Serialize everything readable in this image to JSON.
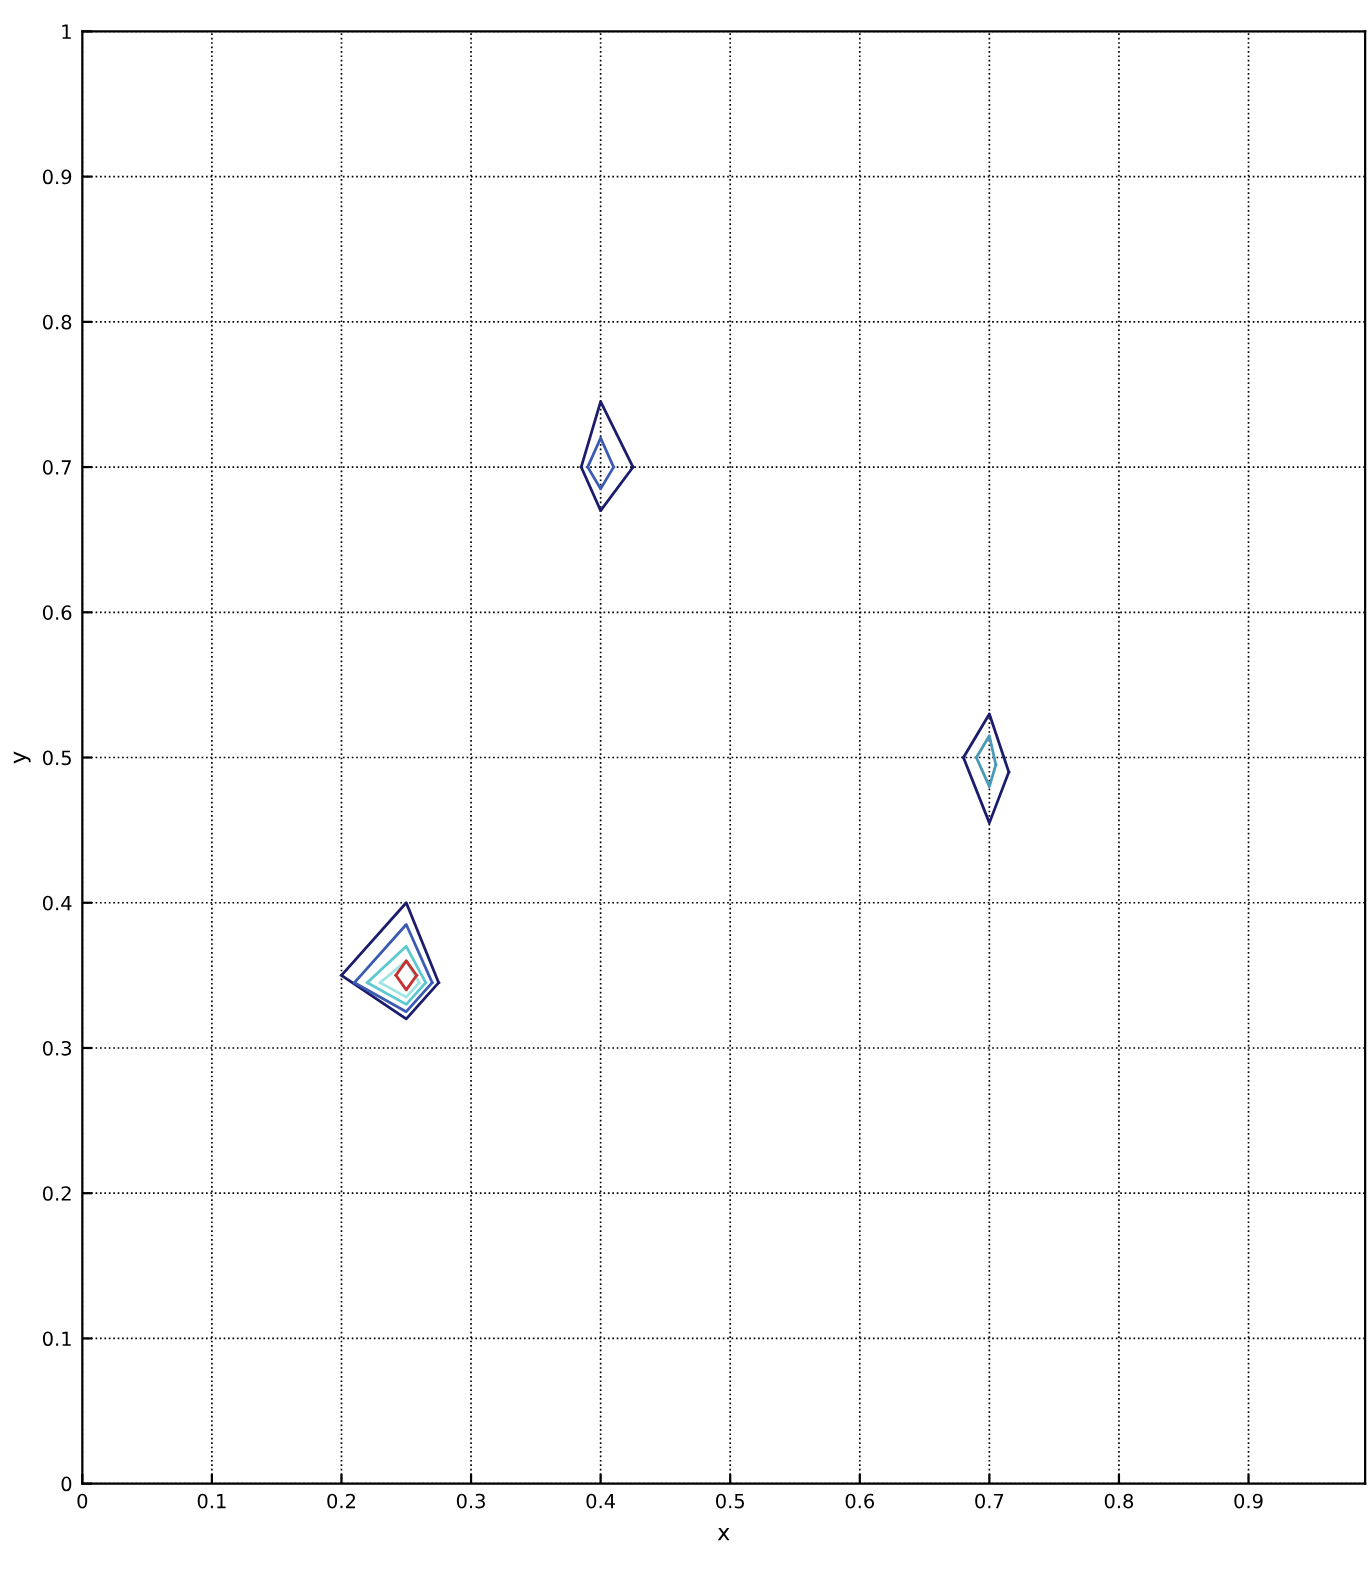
{
  "chart_data": {
    "type": "line",
    "xlabel": "x",
    "ylabel": "y",
    "xlim": [
      0,
      0.99
    ],
    "ylim": [
      0,
      1
    ],
    "xticks": [
      0,
      0.1,
      0.2,
      0.3,
      0.4,
      0.5,
      0.6,
      0.7,
      0.8,
      0.9
    ],
    "yticks": [
      0,
      0.1,
      0.2,
      0.3,
      0.4,
      0.5,
      0.6,
      0.7,
      0.8,
      0.9,
      1
    ],
    "grid": true,
    "marker": "none",
    "line_style": "solid",
    "legend": false,
    "series": [
      {
        "color": "#1c1c6c",
        "x": [
          0.2,
          0.25,
          0.275
        ],
        "values": [
          0.35,
          0.4,
          0.345
        ]
      },
      {
        "color": "#1c1c6c",
        "x": [
          0.2,
          0.25,
          0.275
        ],
        "values": [
          0.35,
          0.32,
          0.345
        ]
      },
      {
        "color": "#3a5ab4",
        "x": [
          0.21,
          0.25,
          0.27
        ],
        "values": [
          0.345,
          0.385,
          0.345
        ]
      },
      {
        "color": "#3a5ab4",
        "x": [
          0.21,
          0.25,
          0.27
        ],
        "values": [
          0.345,
          0.325,
          0.345
        ]
      },
      {
        "color": "#5cc8d0",
        "x": [
          0.22,
          0.25,
          0.265
        ],
        "values": [
          0.345,
          0.37,
          0.345
        ]
      },
      {
        "color": "#5cc8d0",
        "x": [
          0.22,
          0.25,
          0.265
        ],
        "values": [
          0.345,
          0.33,
          0.345
        ]
      },
      {
        "color": "#a0e4e4",
        "x": [
          0.23,
          0.25,
          0.26
        ],
        "values": [
          0.345,
          0.36,
          0.345
        ]
      },
      {
        "color": "#a0e4e4",
        "x": [
          0.23,
          0.25,
          0.26
        ],
        "values": [
          0.345,
          0.335,
          0.345
        ]
      },
      {
        "color": "#c83030",
        "x": [
          0.242,
          0.25,
          0.258
        ],
        "values": [
          0.35,
          0.36,
          0.35
        ]
      },
      {
        "color": "#c83030",
        "x": [
          0.242,
          0.25,
          0.258
        ],
        "values": [
          0.35,
          0.34,
          0.35
        ]
      },
      {
        "color": "#1c1c6c",
        "x": [
          0.385,
          0.4,
          0.425
        ],
        "values": [
          0.7,
          0.745,
          0.7
        ]
      },
      {
        "color": "#1c1c6c",
        "x": [
          0.385,
          0.4,
          0.425
        ],
        "values": [
          0.7,
          0.67,
          0.7
        ]
      },
      {
        "color": "#3a5ab4",
        "x": [
          0.39,
          0.4,
          0.41
        ],
        "values": [
          0.7,
          0.72,
          0.7
        ]
      },
      {
        "color": "#3a5ab4",
        "x": [
          0.39,
          0.4,
          0.41
        ],
        "values": [
          0.7,
          0.685,
          0.7
        ]
      },
      {
        "color": "#1c1c6c",
        "x": [
          0.68,
          0.7,
          0.715
        ],
        "values": [
          0.5,
          0.53,
          0.49
        ]
      },
      {
        "color": "#1c1c6c",
        "x": [
          0.68,
          0.7,
          0.715
        ],
        "values": [
          0.5,
          0.455,
          0.49
        ]
      },
      {
        "color": "#4a9ab8",
        "x": [
          0.69,
          0.7,
          0.705
        ],
        "values": [
          0.5,
          0.515,
          0.495
        ]
      },
      {
        "color": "#4a9ab8",
        "x": [
          0.69,
          0.7,
          0.705
        ],
        "values": [
          0.5,
          0.48,
          0.495
        ]
      }
    ]
  }
}
